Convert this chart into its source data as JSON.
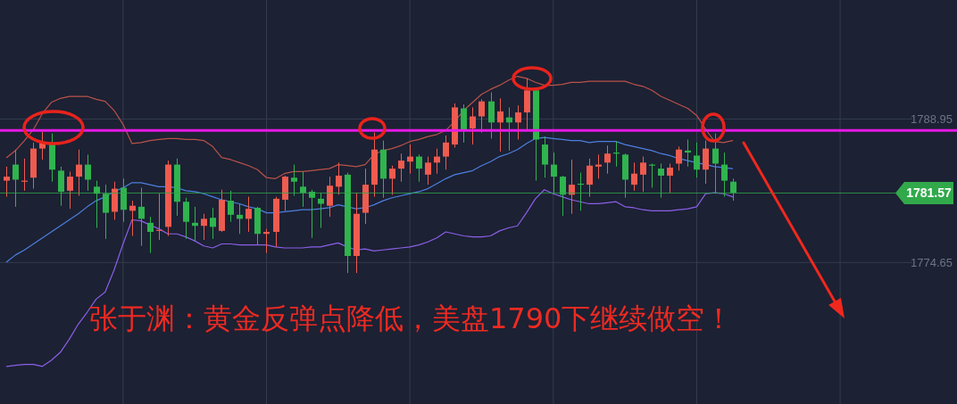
{
  "chart_data": {
    "type": "candlestick",
    "categories": [
      null,
      null,
      null,
      null,
      null,
      null,
      null,
      null,
      null,
      null,
      null,
      null,
      null,
      null,
      null,
      null,
      null,
      null,
      null,
      null,
      null,
      null,
      null,
      null,
      null,
      null,
      null,
      null,
      null,
      null,
      null,
      null,
      null,
      null,
      null,
      null,
      null,
      null,
      null,
      null,
      null,
      null,
      null,
      null,
      null,
      null,
      null,
      null,
      null,
      null,
      null,
      null,
      null,
      null,
      null,
      null,
      null,
      null,
      null,
      null,
      null,
      null,
      null,
      null,
      null,
      null,
      null,
      null,
      null,
      null,
      null,
      null,
      null,
      null,
      null,
      null,
      null,
      null,
      null,
      null,
      null,
      null
    ],
    "ohlc": [
      [
        1782.8,
        1784.2,
        1781.2,
        1783.2
      ],
      [
        1784.4,
        1785.9,
        1780.2,
        1782.9
      ],
      [
        1782.7,
        1785.0,
        1781.8,
        1782.8
      ],
      [
        1783.1,
        1786.6,
        1782.0,
        1786.0
      ],
      [
        1786.0,
        1787.7,
        1784.9,
        1786.6
      ],
      [
        1786.4,
        1787.5,
        1782.7,
        1783.9
      ],
      [
        1783.8,
        1784.2,
        1780.3,
        1781.7
      ],
      [
        1781.8,
        1783.7,
        1780.0,
        1783.2
      ],
      [
        1783.2,
        1785.9,
        1781.3,
        1784.4
      ],
      [
        1784.4,
        1785.4,
        1781.8,
        1782.9
      ],
      [
        1782.2,
        1782.8,
        1778.1,
        1781.5
      ],
      [
        1781.5,
        1782.4,
        1777.0,
        1779.6
      ],
      [
        1779.7,
        1782.7,
        1778.9,
        1782.0
      ],
      [
        1782.1,
        1783.0,
        1778.7,
        1779.9
      ],
      [
        1779.8,
        1780.8,
        1777.3,
        1780.3
      ],
      [
        1780.2,
        1782.1,
        1776.3,
        1779.0
      ],
      [
        1778.6,
        1779.2,
        1775.6,
        1777.7
      ],
      [
        1777.8,
        1781.5,
        1776.9,
        1777.9
      ],
      [
        1778.2,
        1784.8,
        1777.3,
        1784.4
      ],
      [
        1784.4,
        1785.0,
        1779.3,
        1780.7
      ],
      [
        1780.7,
        1781.1,
        1777.0,
        1778.7
      ],
      [
        1778.6,
        1780.2,
        1776.8,
        1778.3
      ],
      [
        1778.3,
        1779.5,
        1776.9,
        1779.0
      ],
      [
        1779.1,
        1780.1,
        1777.0,
        1778.2
      ],
      [
        1777.8,
        1781.9,
        1777.7,
        1780.9
      ],
      [
        1780.8,
        1781.8,
        1778.7,
        1779.4
      ],
      [
        1779.4,
        1780.5,
        1777.5,
        1779.0
      ],
      [
        1779.0,
        1781.2,
        1777.7,
        1780.0
      ],
      [
        1780.1,
        1780.2,
        1776.4,
        1777.5
      ],
      [
        1777.5,
        1778.0,
        1775.6,
        1777.7
      ],
      [
        1777.7,
        1781.2,
        1776.2,
        1781.0
      ],
      [
        1780.9,
        1783.3,
        1779.8,
        1783.2
      ],
      [
        1783.1,
        1784.4,
        1781.3,
        1782.7
      ],
      [
        1782.2,
        1783.7,
        1780.2,
        1781.6
      ],
      [
        1781.7,
        1781.9,
        1777.1,
        1781.1
      ],
      [
        1781.0,
        1781.6,
        1778.1,
        1780.5
      ],
      [
        1780.3,
        1783.2,
        1779.2,
        1782.3
      ],
      [
        1782.2,
        1784.6,
        1781.4,
        1783.3
      ],
      [
        1783.4,
        1783.6,
        1773.6,
        1775.3
      ],
      [
        1775.3,
        1781.6,
        1773.6,
        1779.5
      ],
      [
        1779.6,
        1784.0,
        1778.5,
        1782.4
      ],
      [
        1782.4,
        1787.6,
        1781.2,
        1785.9
      ],
      [
        1785.9,
        1786.8,
        1781.1,
        1783.0
      ],
      [
        1783.0,
        1784.3,
        1781.4,
        1784.0
      ],
      [
        1784.0,
        1785.5,
        1782.7,
        1784.8
      ],
      [
        1784.7,
        1786.4,
        1783.5,
        1785.2
      ],
      [
        1785.2,
        1785.4,
        1782.7,
        1784.0
      ],
      [
        1783.4,
        1785.2,
        1782.4,
        1784.6
      ],
      [
        1784.6,
        1786.0,
        1783.5,
        1785.2
      ],
      [
        1785.2,
        1787.3,
        1783.9,
        1786.6
      ],
      [
        1786.4,
        1790.5,
        1786.1,
        1790.1
      ],
      [
        1790.0,
        1790.4,
        1786.6,
        1787.9
      ],
      [
        1788.0,
        1790.1,
        1786.4,
        1789.2
      ],
      [
        1789.2,
        1790.9,
        1787.6,
        1790.7
      ],
      [
        1790.7,
        1791.6,
        1787.0,
        1788.6
      ],
      [
        1788.6,
        1791.0,
        1785.7,
        1789.7
      ],
      [
        1789.1,
        1790.1,
        1785.8,
        1788.6
      ],
      [
        1788.6,
        1790.3,
        1786.9,
        1789.6
      ],
      [
        1789.6,
        1793.0,
        1787.9,
        1791.8
      ],
      [
        1791.8,
        1792.0,
        1782.8,
        1786.9
      ],
      [
        1786.4,
        1787.2,
        1783.1,
        1784.4
      ],
      [
        1784.4,
        1785.6,
        1781.5,
        1783.2
      ],
      [
        1783.2,
        1783.3,
        1779.3,
        1781.4
      ],
      [
        1781.4,
        1784.9,
        1779.5,
        1782.4
      ],
      [
        1782.5,
        1783.6,
        1779.8,
        1782.4
      ],
      [
        1782.4,
        1785.0,
        1781.2,
        1784.3
      ],
      [
        1784.2,
        1785.4,
        1783.0,
        1784.4
      ],
      [
        1784.6,
        1786.3,
        1783.5,
        1785.5
      ],
      [
        1785.6,
        1786.7,
        1784.2,
        1785.5
      ],
      [
        1785.4,
        1785.5,
        1781.1,
        1782.9
      ],
      [
        1782.4,
        1784.6,
        1781.8,
        1783.5
      ],
      [
        1783.4,
        1785.2,
        1781.7,
        1784.6
      ],
      [
        1784.4,
        1784.5,
        1782.1,
        1784.3
      ],
      [
        1784.0,
        1784.5,
        1781.1,
        1783.3
      ],
      [
        1783.3,
        1784.5,
        1781.6,
        1784.1
      ],
      [
        1784.5,
        1786.2,
        1783.8,
        1785.9
      ],
      [
        1785.8,
        1786.9,
        1784.2,
        1785.6
      ],
      [
        1785.3,
        1786.6,
        1783.1,
        1783.9
      ],
      [
        1783.9,
        1786.8,
        1782.5,
        1786.0
      ],
      [
        1786.0,
        1787.5,
        1781.5,
        1784.5
      ],
      [
        1784.4,
        1785.6,
        1781.2,
        1782.8
      ],
      [
        1782.7,
        1783.0,
        1780.8,
        1781.6
      ]
    ],
    "colors": [
      "#ef5b4f",
      "#2fb44e",
      "#ef5b4f",
      "#ef5b4f",
      "#ef5b4f",
      "#2fb44e",
      "#2fb44e",
      "#ef5b4f",
      "#ef5b4f",
      "#2fb44e",
      "#2fb44e",
      "#2fb44e",
      "#ef5b4f",
      "#2fb44e",
      "#ef5b4f",
      "#2fb44e",
      "#2fb44e",
      "#ef5b4f",
      "#ef5b4f",
      "#2fb44e",
      "#2fb44e",
      "#2fb44e",
      "#ef5b4f",
      "#2fb44e",
      "#ef5b4f",
      "#2fb44e",
      "#2fb44e",
      "#ef5b4f",
      "#2fb44e",
      "#ef5b4f",
      "#ef5b4f",
      "#ef5b4f",
      "#2fb44e",
      "#2fb44e",
      "#2fb44e",
      "#2fb44e",
      "#ef5b4f",
      "#ef5b4f",
      "#2fb44e",
      "#ef5b4f",
      "#ef5b4f",
      "#ef5b4f",
      "#2fb44e",
      "#ef5b4f",
      "#ef5b4f",
      "#ef5b4f",
      "#2fb44e",
      "#ef5b4f",
      "#ef5b4f",
      "#ef5b4f",
      "#ef5b4f",
      "#2fb44e",
      "#ef5b4f",
      "#ef5b4f",
      "#2fb44e",
      "#ef5b4f",
      "#2fb44e",
      "#ef5b4f",
      "#ef5b4f",
      "#2fb44e",
      "#2fb44e",
      "#2fb44e",
      "#2fb44e",
      "#ef5b4f",
      "#2fb44e",
      "#ef5b4f",
      "#ef5b4f",
      "#ef5b4f",
      "#2fb44e",
      "#2fb44e",
      "#ef5b4f",
      "#ef5b4f",
      "#2fb44e",
      "#2fb44e",
      "#ef5b4f",
      "#ef5b4f",
      "#2fb44e",
      "#2fb44e",
      "#ef5b4f",
      "#2fb44e",
      "#2fb44e",
      "#2fb44e"
    ],
    "series": [
      {
        "type": "line",
        "color": "#b9524a",
        "values": [
          1785.1,
          1785.8,
          1786.8,
          1787.9,
          1789.5,
          1790.6,
          1791.0,
          1791.2,
          1791.2,
          1791.2,
          1790.9,
          1790.7,
          1789.8,
          1788.4,
          1786.5,
          1786.6,
          1786.8,
          1786.9,
          1787.0,
          1787.0,
          1786.9,
          1786.9,
          1786.8,
          1786.2,
          1785.1,
          1784.9,
          1784.6,
          1784.3,
          1783.9,
          1783.1,
          1783.0,
          1783.5,
          1783.7,
          1783.7,
          1783.8,
          1783.9,
          1784.0,
          1784.4,
          1784.3,
          1784.2,
          1784.4,
          1785.4,
          1785.8,
          1786.0,
          1786.3,
          1786.7,
          1786.9,
          1787.2,
          1787.4,
          1787.8,
          1788.7,
          1789.8,
          1790.6,
          1791.4,
          1791.9,
          1792.3,
          1792.8,
          1793.2,
          1793.0,
          1792.6,
          1792.3,
          1792.3,
          1792.4,
          1792.6,
          1792.6,
          1792.7,
          1792.7,
          1792.7,
          1792.7,
          1792.7,
          1792.4,
          1792.2,
          1791.8,
          1791.2,
          1790.8,
          1790.4,
          1790.0,
          1789.3,
          1787.9,
          1786.7,
          1786.6,
          1786.8
        ]
      },
      {
        "type": "line",
        "color": "#4c7fe0",
        "values": [
          1774.7,
          1775.4,
          1775.9,
          1776.5,
          1777.1,
          1777.7,
          1778.3,
          1778.9,
          1779.5,
          1780.2,
          1780.8,
          1781.2,
          1781.7,
          1782.1,
          1782.6,
          1782.6,
          1782.4,
          1782.2,
          1782.2,
          1782.1,
          1781.8,
          1781.7,
          1781.5,
          1781.2,
          1780.9,
          1780.7,
          1780.5,
          1780.2,
          1780.0,
          1779.6,
          1779.6,
          1779.7,
          1779.8,
          1779.9,
          1779.9,
          1780.0,
          1780.1,
          1780.4,
          1780.2,
          1780.0,
          1780.1,
          1780.4,
          1780.8,
          1781.1,
          1781.3,
          1781.5,
          1781.7,
          1782.0,
          1782.5,
          1783.0,
          1783.4,
          1783.6,
          1783.8,
          1784.3,
          1784.7,
          1785.2,
          1785.5,
          1785.9,
          1786.5,
          1787.0,
          1787.1,
          1787.0,
          1786.9,
          1786.8,
          1786.8,
          1786.6,
          1786.7,
          1786.7,
          1786.7,
          1786.4,
          1786.2,
          1786.0,
          1785.8,
          1785.5,
          1785.3,
          1785.0,
          1784.8,
          1784.6,
          1784.4,
          1784.2,
          1784.1,
          1784.0
        ]
      },
      {
        "type": "line",
        "color": "#8b5fe8",
        "values": [
          1764.3,
          1764.4,
          1764.5,
          1764.5,
          1764.3,
          1764.9,
          1765.7,
          1767.0,
          1768.5,
          1769.7,
          1771.0,
          1771.7,
          1773.9,
          1776.5,
          1778.9,
          1778.8,
          1778.4,
          1778.0,
          1777.5,
          1777.5,
          1777.2,
          1776.8,
          1776.3,
          1776.1,
          1776.5,
          1776.5,
          1776.4,
          1776.4,
          1776.4,
          1776.4,
          1776.2,
          1776.1,
          1776.1,
          1776.1,
          1776.2,
          1776.2,
          1776.4,
          1776.6,
          1776.2,
          1775.9,
          1776.0,
          1775.8,
          1775.9,
          1776.0,
          1776.1,
          1776.2,
          1776.4,
          1776.7,
          1777.1,
          1777.7,
          1777.5,
          1777.3,
          1777.2,
          1777.2,
          1777.3,
          1777.8,
          1778.1,
          1778.3,
          1779.6,
          1781.0,
          1781.9,
          1781.5,
          1781.2,
          1780.9,
          1780.7,
          1780.5,
          1780.5,
          1780.6,
          1780.7,
          1780.2,
          1780.1,
          1779.9,
          1779.8,
          1779.8,
          1779.8,
          1779.9,
          1780.0,
          1780.2,
          1781.5,
          1781.6,
          1781.5,
          1781.2
        ]
      }
    ],
    "ylim": [
      1760.55,
      1800.8
    ],
    "yticks": [
      1774.65,
      1788.95
    ],
    "grid": true,
    "tick_labels": "y",
    "ref_lines": [
      {
        "axis": "y",
        "value": 1787.8,
        "color": "#e619e6"
      },
      {
        "axis": "y",
        "value": 1781.57,
        "label": "1781.57",
        "color": "#31a94b"
      }
    ],
    "annotations": [
      "张于渊：黄金反弹点降低，美盘1790下继续做空！"
    ]
  }
}
